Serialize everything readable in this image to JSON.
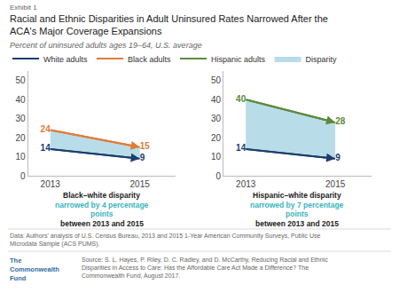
{
  "title": [
    "Racial and Ethnic Disparities in Adult Uninsured Rates Narrowed After the",
    "ACA's Major Coverage Expansions"
  ],
  "subtitle": "Percent of uninsured adults ages 19–64, U.S. average",
  "annotations": [
    "Exhibit 1",
    "Data: Authors' analysis of U.S. Census Bureau, 2013 and 2015 1-Year American Community Surveys, Public Use Microdata Sample (ACS PUMS).",
    "The Commonwealth Fund",
    "Source: S. L. Hayes, P. Riley, D. C. Radley, and D. McCarthy, Reducing Racial and Ethnic Disparities in Access to Care: Has the Affordable Care Act Made a Difference? The Commonwealth Fund, August 2017."
  ],
  "legend": "top left",
  "chart_data": [
    {
      "type": "line",
      "x": [
        2013,
        2015
      ],
      "series": [
        {
          "name": "White adults",
          "color": "#1c3d6e",
          "values": [
            14,
            9
          ]
        },
        {
          "name": "Black adults",
          "color": "#e07b39",
          "values": [
            24,
            15
          ]
        },
        {
          "name": "Disparity",
          "type": "area",
          "color": "#b8dde8",
          "between": [
            "White adults",
            "Black adults"
          ]
        }
      ],
      "xlim": [
        2012.5,
        2015.8
      ],
      "xticks": [
        2013,
        2015
      ],
      "ylim": [
        0,
        55
      ],
      "yticks": [
        0,
        10,
        20,
        30,
        40,
        50
      ],
      "grid": false,
      "data_labels": true,
      "annotations": [
        "Black–white disparity",
        "narrowed by 4 percentage",
        "points",
        "between 2013 and 2015"
      ]
    },
    {
      "type": "line",
      "x": [
        2013,
        2015
      ],
      "series": [
        {
          "name": "White adults",
          "color": "#1c3d6e",
          "values": [
            14,
            9
          ]
        },
        {
          "name": "Hispanic adults",
          "color": "#5c8a3c",
          "values": [
            40,
            28
          ]
        },
        {
          "name": "Disparity",
          "type": "area",
          "color": "#b8dde8",
          "between": [
            "White adults",
            "Hispanic adults"
          ]
        }
      ],
      "xlim": [
        2012.5,
        2015.8
      ],
      "xticks": [
        2013,
        2015
      ],
      "ylim": [
        0,
        55
      ],
      "yticks": [
        0,
        10,
        20,
        30,
        40,
        50
      ],
      "grid": false,
      "data_labels": true,
      "annotations": [
        "Hispanic–white disparity",
        "narrowed by 7 percentage",
        "points",
        "between 2013 and 2015"
      ]
    }
  ]
}
